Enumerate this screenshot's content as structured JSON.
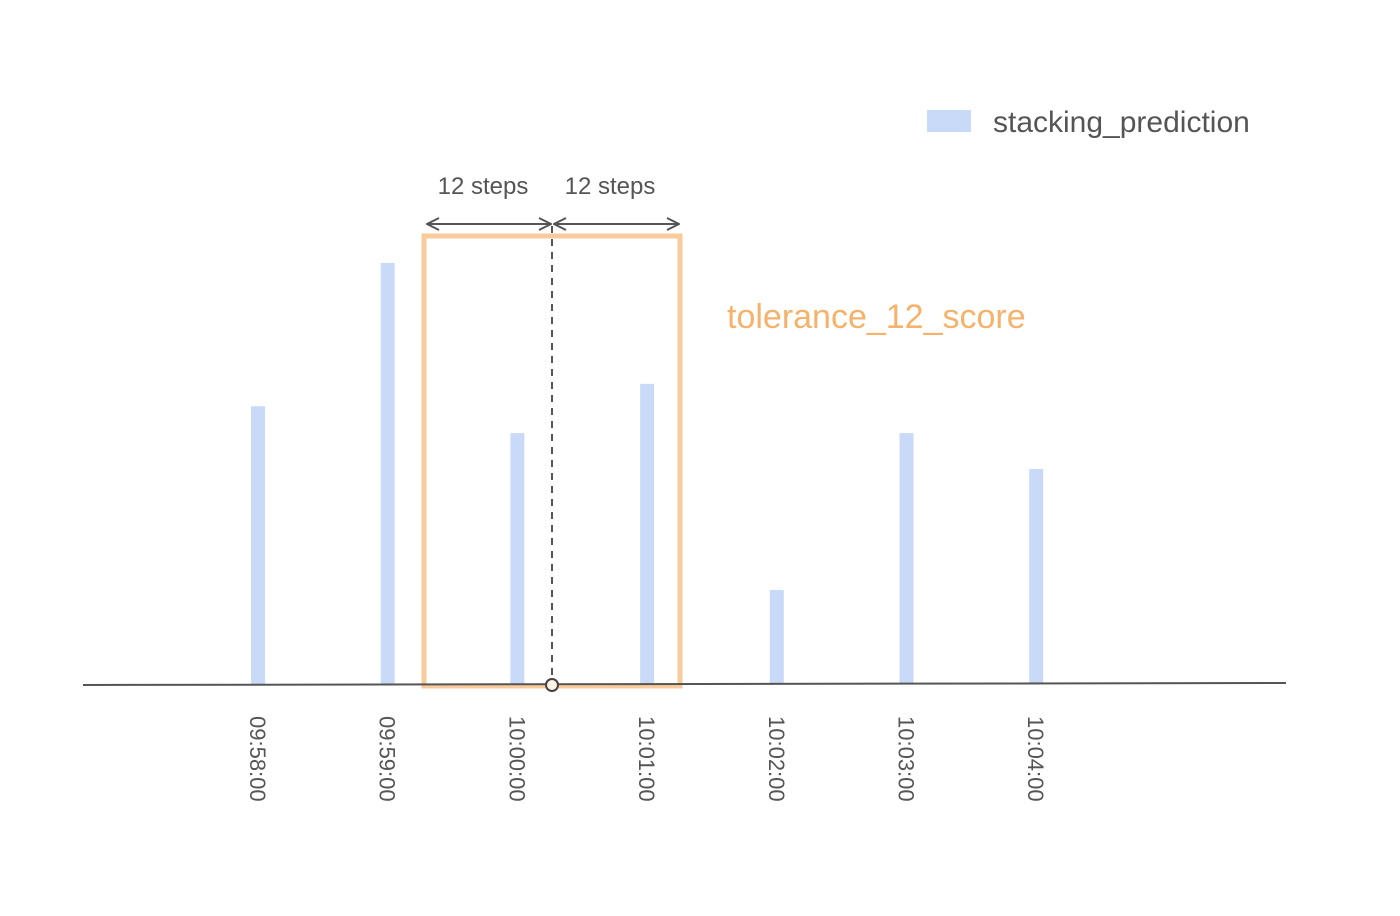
{
  "chart_data": {
    "type": "bar",
    "categories": [
      "09:58:00",
      "09:59:00",
      "10:00:00",
      "10:01:00",
      "10:02:00",
      "10:03:00",
      "10:04:00"
    ],
    "series": [
      {
        "name": "stacking_prediction",
        "values": [
          0.62,
          0.94,
          0.56,
          0.67,
          0.21,
          0.56,
          0.48
        ]
      }
    ],
    "ylim": [
      0,
      1
    ],
    "grid": false,
    "legend_position": "top-right",
    "annotations": {
      "left_steps_label": "12 steps",
      "right_steps_label": "12 steps",
      "tolerance_label": "tolerance_12_score"
    },
    "colors": {
      "bar": "#c9daf8",
      "tolerance": "#f9cb9c",
      "tolerance_text": "#f6b26b",
      "axis": "#555555",
      "annotation": "#555555"
    }
  }
}
